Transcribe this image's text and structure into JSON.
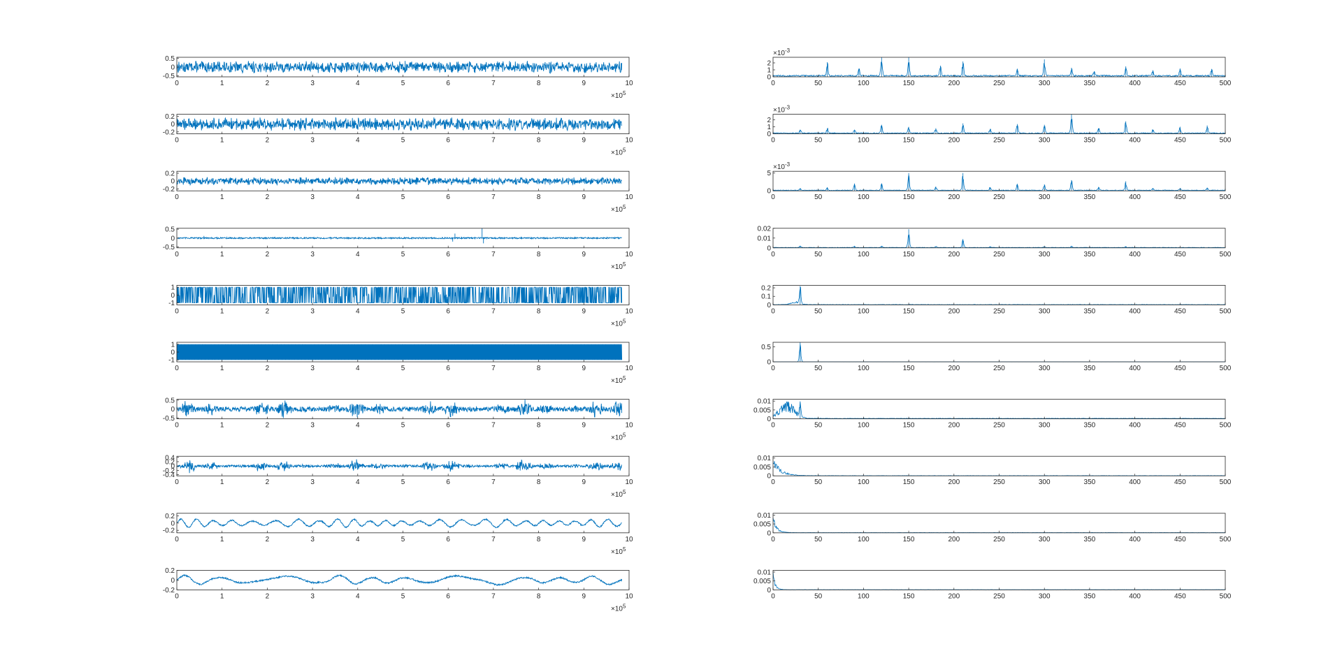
{
  "figure": {
    "line_color": "#0072BD",
    "axis_color": "#262626"
  },
  "chart_data": [
    {
      "type": "line",
      "column": "left",
      "row": 1,
      "signal": "dense",
      "amplitude": 0.35,
      "xlim": [
        0,
        10
      ],
      "ylim": [
        -0.55,
        0.55
      ],
      "xticks": [
        "0",
        "1",
        "2",
        "3",
        "4",
        "5",
        "6",
        "7",
        "8",
        "9",
        "10"
      ],
      "yticks": [
        {
          "value": -0.5,
          "label": "-0.5"
        },
        {
          "value": 0,
          "label": "0"
        },
        {
          "value": 0.5,
          "label": "0.5"
        }
      ],
      "multiplier": {
        "base": "×10",
        "exp": "5"
      }
    },
    {
      "type": "line",
      "column": "left",
      "row": 2,
      "signal": "dense",
      "amplitude": 0.17,
      "xlim": [
        0,
        10
      ],
      "ylim": [
        -0.25,
        0.25
      ],
      "xticks": [
        "0",
        "1",
        "2",
        "3",
        "4",
        "5",
        "6",
        "7",
        "8",
        "9",
        "10"
      ],
      "yticks": [
        {
          "value": -0.2,
          "label": "-0.2"
        },
        {
          "value": 0,
          "label": "0"
        },
        {
          "value": 0.2,
          "label": "0.2"
        }
      ],
      "multiplier": {
        "base": "×10",
        "exp": "5"
      }
    },
    {
      "type": "line",
      "column": "left",
      "row": 3,
      "signal": "dense",
      "amplitude": 0.1,
      "xlim": [
        0,
        10
      ],
      "ylim": [
        -0.25,
        0.25
      ],
      "xticks": [
        "0",
        "1",
        "2",
        "3",
        "4",
        "5",
        "6",
        "7",
        "8",
        "9",
        "10"
      ],
      "yticks": [
        {
          "value": -0.2,
          "label": "-0.2"
        },
        {
          "value": 0,
          "label": "0"
        },
        {
          "value": 0.2,
          "label": "0.2"
        }
      ],
      "multiplier": {
        "base": "×10",
        "exp": "5"
      }
    },
    {
      "type": "line",
      "column": "left",
      "row": 4,
      "signal": "spiky",
      "amplitude": 0.04,
      "spikes": [
        [
          0.6,
          0.12
        ],
        [
          6.1,
          -0.2
        ],
        [
          6.15,
          0.25
        ],
        [
          6.75,
          0.55
        ],
        [
          6.78,
          -0.3
        ]
      ],
      "xlim": [
        0,
        10
      ],
      "ylim": [
        -0.55,
        0.55
      ],
      "xticks": [
        "0",
        "1",
        "2",
        "3",
        "4",
        "5",
        "6",
        "7",
        "8",
        "9",
        "10"
      ],
      "yticks": [
        {
          "value": -0.5,
          "label": "-0.5"
        },
        {
          "value": 0,
          "label": "0"
        },
        {
          "value": 0.5,
          "label": "0.5"
        }
      ],
      "multiplier": {
        "base": "×10",
        "exp": "5"
      }
    },
    {
      "type": "line",
      "column": "left",
      "row": 5,
      "signal": "square",
      "amplitude": 1,
      "xlim": [
        0,
        10
      ],
      "ylim": [
        -1.25,
        1.25
      ],
      "xticks": [
        "0",
        "1",
        "2",
        "3",
        "4",
        "5",
        "6",
        "7",
        "8",
        "9",
        "10"
      ],
      "yticks": [
        {
          "value": -1,
          "label": "-1"
        },
        {
          "value": 0,
          "label": "0"
        },
        {
          "value": 1,
          "label": "1"
        }
      ],
      "multiplier": {
        "base": "×10",
        "exp": "5"
      }
    },
    {
      "type": "line",
      "column": "left",
      "row": 6,
      "signal": "solid",
      "amplitude": 1,
      "xlim": [
        0,
        10
      ],
      "ylim": [
        -1.25,
        1.25
      ],
      "xticks": [
        "0",
        "1",
        "2",
        "3",
        "4",
        "5",
        "6",
        "7",
        "8",
        "9",
        "10"
      ],
      "yticks": [
        {
          "value": -1,
          "label": "-1"
        },
        {
          "value": 0,
          "label": "0"
        },
        {
          "value": 1,
          "label": "1"
        }
      ],
      "multiplier": {
        "base": "×10",
        "exp": "5"
      }
    },
    {
      "type": "line",
      "column": "left",
      "row": 7,
      "signal": "bursty",
      "amplitude": 0.12,
      "burst": 0.45,
      "xlim": [
        0,
        10
      ],
      "ylim": [
        -0.55,
        0.55
      ],
      "xticks": [
        "0",
        "1",
        "2",
        "3",
        "4",
        "5",
        "6",
        "7",
        "8",
        "9",
        "10"
      ],
      "yticks": [
        {
          "value": -0.5,
          "label": "-0.5"
        },
        {
          "value": 0,
          "label": "0"
        },
        {
          "value": 0.5,
          "label": "0.5"
        }
      ],
      "multiplier": {
        "base": "×10",
        "exp": "5"
      }
    },
    {
      "type": "line",
      "column": "left",
      "row": 8,
      "signal": "bursty",
      "amplitude": 0.05,
      "burst": 0.3,
      "xlim": [
        0,
        10
      ],
      "ylim": [
        -0.45,
        0.45
      ],
      "xticks": [
        "0",
        "1",
        "2",
        "3",
        "4",
        "5",
        "6",
        "7",
        "8",
        "9",
        "10"
      ],
      "yticks": [
        {
          "value": -0.4,
          "label": "-0.4"
        },
        {
          "value": -0.2,
          "label": "-0.2"
        },
        {
          "value": 0,
          "label": "0"
        },
        {
          "value": 0.2,
          "label": "0.2"
        },
        {
          "value": 0.4,
          "label": "0.4"
        }
      ],
      "multiplier": {
        "base": "×10",
        "exp": "5"
      }
    },
    {
      "type": "line",
      "column": "left",
      "row": 9,
      "signal": "wavy",
      "amplitude": 0.12,
      "freq": 22,
      "xlim": [
        0,
        10
      ],
      "ylim": [
        -0.27,
        0.27
      ],
      "xticks": [
        "0",
        "1",
        "2",
        "3",
        "4",
        "5",
        "6",
        "7",
        "8",
        "9",
        "10"
      ],
      "yticks": [
        {
          "value": -0.2,
          "label": "-0.2"
        },
        {
          "value": 0,
          "label": "0"
        },
        {
          "value": 0.2,
          "label": "0.2"
        }
      ],
      "multiplier": {
        "base": "×10",
        "exp": "5"
      }
    },
    {
      "type": "line",
      "column": "left",
      "row": 10,
      "signal": "wavy",
      "amplitude": 0.1,
      "freq": 9,
      "xlim": [
        0,
        10
      ],
      "ylim": [
        -0.2,
        0.2
      ],
      "xticks": [
        "0",
        "1",
        "2",
        "3",
        "4",
        "5",
        "6",
        "7",
        "8",
        "9",
        "10"
      ],
      "yticks": [
        {
          "value": -0.2,
          "label": "-0.2"
        },
        {
          "value": 0,
          "label": "0"
        },
        {
          "value": 0.2,
          "label": "0.2"
        }
      ],
      "multiplier": {
        "base": "×10",
        "exp": "5"
      }
    },
    {
      "type": "line",
      "column": "right",
      "row": 1,
      "spectrum": "multi",
      "floor": 0.15,
      "ylim": [
        0,
        2.8
      ],
      "xlim": [
        0,
        500
      ],
      "peaks": [
        [
          60,
          2.1
        ],
        [
          95,
          1.2
        ],
        [
          120,
          2.8
        ],
        [
          150,
          2.8
        ],
        [
          185,
          1.6
        ],
        [
          210,
          2.2
        ],
        [
          270,
          1.1
        ],
        [
          300,
          2.5
        ],
        [
          330,
          1.3
        ],
        [
          355,
          0.8
        ],
        [
          390,
          1.5
        ],
        [
          420,
          0.9
        ],
        [
          450,
          1.2
        ],
        [
          485,
          1.1
        ]
      ],
      "xticks": [
        "0",
        "50",
        "100",
        "150",
        "200",
        "250",
        "300",
        "350",
        "400",
        "450",
        "500"
      ],
      "yticks": [
        {
          "value": 0,
          "label": "0"
        },
        {
          "value": 1,
          "label": "1"
        },
        {
          "value": 2,
          "label": "2"
        }
      ],
      "multiplier": {
        "base": "×10",
        "exp": "-3"
      }
    },
    {
      "type": "line",
      "column": "right",
      "row": 2,
      "spectrum": "multi",
      "floor": 0.1,
      "ylim": [
        0,
        2.8
      ],
      "xlim": [
        0,
        500
      ],
      "peaks": [
        [
          30,
          0.6
        ],
        [
          60,
          0.8
        ],
        [
          90,
          0.6
        ],
        [
          120,
          1.3
        ],
        [
          150,
          1.0
        ],
        [
          180,
          0.8
        ],
        [
          210,
          1.5
        ],
        [
          240,
          0.7
        ],
        [
          270,
          1.4
        ],
        [
          300,
          1.3
        ],
        [
          330,
          2.8
        ],
        [
          360,
          0.8
        ],
        [
          390,
          1.8
        ],
        [
          420,
          0.6
        ],
        [
          450,
          0.9
        ],
        [
          480,
          1.2
        ]
      ],
      "xticks": [
        "0",
        "50",
        "100",
        "150",
        "200",
        "250",
        "300",
        "350",
        "400",
        "450",
        "500"
      ],
      "yticks": [
        {
          "value": 0,
          "label": "0"
        },
        {
          "value": 1,
          "label": "1"
        },
        {
          "value": 2,
          "label": "2"
        }
      ],
      "multiplier": {
        "base": "×10",
        "exp": "-3"
      }
    },
    {
      "type": "line",
      "column": "right",
      "row": 3,
      "spectrum": "multi",
      "floor": 0.15,
      "ylim": [
        0,
        5.5
      ],
      "xlim": [
        0,
        500
      ],
      "peaks": [
        [
          30,
          0.6
        ],
        [
          60,
          0.8
        ],
        [
          90,
          2.0
        ],
        [
          120,
          2.0
        ],
        [
          150,
          5.0
        ],
        [
          180,
          1.2
        ],
        [
          210,
          5.0
        ],
        [
          240,
          1.0
        ],
        [
          270,
          1.8
        ],
        [
          300,
          1.8
        ],
        [
          330,
          3.0
        ],
        [
          360,
          1.0
        ],
        [
          390,
          2.7
        ],
        [
          420,
          0.7
        ],
        [
          450,
          0.8
        ],
        [
          480,
          0.9
        ]
      ],
      "xticks": [
        "0",
        "50",
        "100",
        "150",
        "200",
        "250",
        "300",
        "350",
        "400",
        "450",
        "500"
      ],
      "yticks": [
        {
          "value": 0,
          "label": "0"
        },
        {
          "value": 5,
          "label": "5"
        }
      ],
      "multiplier": {
        "base": "×10",
        "exp": "-3"
      }
    },
    {
      "type": "line",
      "column": "right",
      "row": 4,
      "spectrum": "multi",
      "floor": 0.0003,
      "ylim": [
        0,
        0.02
      ],
      "xlim": [
        0,
        500
      ],
      "peaks": [
        [
          30,
          0.002
        ],
        [
          90,
          0.0015
        ],
        [
          120,
          0.002
        ],
        [
          150,
          0.019
        ],
        [
          180,
          0.0015
        ],
        [
          210,
          0.009
        ],
        [
          240,
          0.001
        ],
        [
          300,
          0.0012
        ],
        [
          330,
          0.0015
        ],
        [
          390,
          0.0012
        ]
      ],
      "xticks": [
        "0",
        "50",
        "100",
        "150",
        "200",
        "250",
        "300",
        "350",
        "400",
        "450",
        "500"
      ],
      "yticks": [
        {
          "value": 0,
          "label": "0"
        },
        {
          "value": 0.01,
          "label": "0.01"
        },
        {
          "value": 0.02,
          "label": "0.02"
        }
      ]
    },
    {
      "type": "line",
      "column": "right",
      "row": 5,
      "spectrum": "hump",
      "humpCenter": 25,
      "humpWidth": 7,
      "humpHeight": 0.03,
      "floor": 0.003,
      "ylim": [
        0,
        0.23
      ],
      "xlim": [
        0,
        500
      ],
      "peaks": [
        [
          30,
          0.22
        ]
      ],
      "xticks": [
        "0",
        "50",
        "100",
        "150",
        "200",
        "250",
        "300",
        "350",
        "400",
        "450",
        "500"
      ],
      "yticks": [
        {
          "value": 0,
          "label": "0"
        },
        {
          "value": 0.1,
          "label": "0.1"
        },
        {
          "value": 0.2,
          "label": "0.2"
        }
      ]
    },
    {
      "type": "line",
      "column": "right",
      "row": 6,
      "spectrum": "single",
      "floor": 0.002,
      "ylim": [
        0,
        0.65
      ],
      "xlim": [
        0,
        500
      ],
      "peaks": [
        [
          30,
          0.65
        ]
      ],
      "xticks": [
        "0",
        "50",
        "100",
        "150",
        "200",
        "250",
        "300",
        "350",
        "400",
        "450",
        "500"
      ],
      "yticks": [
        {
          "value": 0,
          "label": "0"
        },
        {
          "value": 0.5,
          "label": "0.5"
        }
      ]
    },
    {
      "type": "line",
      "column": "right",
      "row": 7,
      "spectrum": "hump",
      "humpCenter": 15,
      "humpWidth": 12,
      "humpHeight": 0.008,
      "floor": 0.0002,
      "ylim": [
        0,
        0.011
      ],
      "xlim": [
        0,
        500
      ],
      "peaks": [
        [
          30,
          0.009
        ]
      ],
      "xticks": [
        "0",
        "50",
        "100",
        "150",
        "200",
        "250",
        "300",
        "350",
        "400",
        "450",
        "500"
      ],
      "yticks": [
        {
          "value": 0,
          "label": "0"
        },
        {
          "value": 0.005,
          "label": "0.005"
        },
        {
          "value": 0.01,
          "label": "0.01"
        }
      ]
    },
    {
      "type": "line",
      "column": "right",
      "row": 8,
      "spectrum": "decay",
      "decay": 8,
      "humpHeight": 0.01,
      "floor": 0.0001,
      "ylim": [
        0,
        0.011
      ],
      "xlim": [
        0,
        500
      ],
      "peaks": [],
      "xticks": [
        "0",
        "50",
        "100",
        "150",
        "200",
        "250",
        "300",
        "350",
        "400",
        "450",
        "500"
      ],
      "yticks": [
        {
          "value": 0,
          "label": "0"
        },
        {
          "value": 0.005,
          "label": "0.005"
        },
        {
          "value": 0.01,
          "label": "0.01"
        }
      ]
    },
    {
      "type": "line",
      "column": "right",
      "row": 9,
      "spectrum": "decay",
      "decay": 4,
      "humpHeight": 0.01,
      "floor": 0.0001,
      "ylim": [
        0,
        0.011
      ],
      "xlim": [
        0,
        500
      ],
      "peaks": [],
      "xticks": [
        "0",
        "50",
        "100",
        "150",
        "200",
        "250",
        "300",
        "350",
        "400",
        "450",
        "500"
      ],
      "yticks": [
        {
          "value": 0,
          "label": "0"
        },
        {
          "value": 0.005,
          "label": "0.005"
        },
        {
          "value": 0.01,
          "label": "0.01"
        }
      ]
    },
    {
      "type": "line",
      "column": "right",
      "row": 10,
      "spectrum": "decay",
      "decay": 2.5,
      "humpHeight": 0.01,
      "floor": 0.0001,
      "ylim": [
        0,
        0.011
      ],
      "xlim": [
        0,
        500
      ],
      "peaks": [],
      "xticks": [
        "0",
        "50",
        "100",
        "150",
        "200",
        "250",
        "300",
        "350",
        "400",
        "450",
        "500"
      ],
      "yticks": [
        {
          "value": 0,
          "label": "0"
        },
        {
          "value": 0.005,
          "label": "0.005"
        },
        {
          "value": 0.01,
          "label": "0.01"
        }
      ]
    }
  ]
}
